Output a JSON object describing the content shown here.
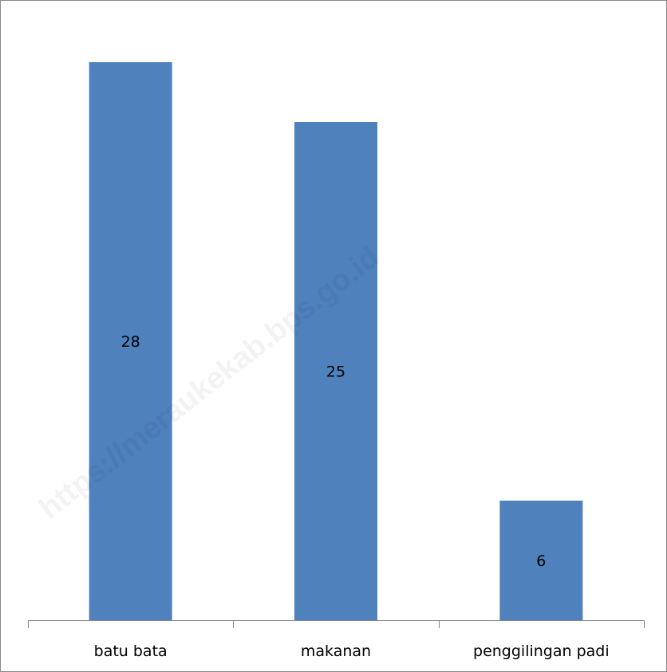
{
  "chart_data": {
    "type": "bar",
    "categories": [
      "batu bata",
      "makanan",
      "penggilingan padi"
    ],
    "values": [
      28,
      25,
      6
    ],
    "title": "",
    "xlabel": "",
    "ylabel": "",
    "ylim": [
      0,
      31
    ],
    "grid": false,
    "legend": "none",
    "bar_color": "#4F81BD"
  },
  "watermark": {
    "text": "https://meraukekab.bps.go.id"
  }
}
